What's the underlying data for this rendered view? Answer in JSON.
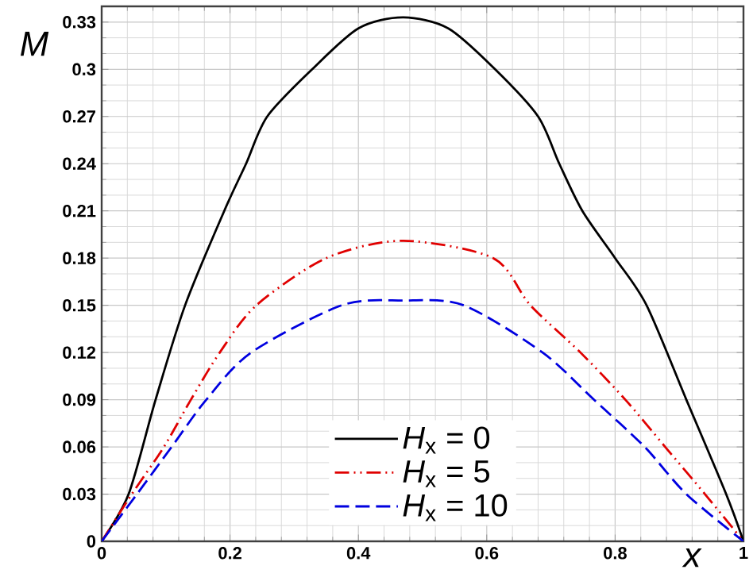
{
  "chart_data": {
    "type": "line",
    "xlabel": "x",
    "ylabel": "M",
    "xlim": [
      0,
      1
    ],
    "ylim": [
      0,
      0.34
    ],
    "xticks": [
      0,
      0.2,
      0.4,
      0.6,
      0.8,
      1
    ],
    "yticks": [
      0,
      0.03,
      0.06,
      0.09,
      0.12,
      0.15,
      0.18,
      0.21,
      0.24,
      0.27,
      0.3,
      0.33
    ],
    "grid": true,
    "legend": "bottom",
    "marker": "none",
    "series": [
      {
        "name": "*H*$_{x}$ = 0",
        "color": "#000000",
        "line_style": "solid",
        "x": [
          0,
          0.042,
          0.084,
          0.13,
          0.191,
          0.225,
          0.258,
          0.328,
          0.4,
          0.469,
          0.54,
          0.613,
          0.68,
          0.713,
          0.749,
          0.8,
          0.849,
          0.911,
          0.973,
          1
        ],
        "values": [
          0,
          0.03,
          0.09,
          0.15,
          0.21,
          0.24,
          0.27,
          0.3,
          0.326,
          0.333,
          0.326,
          0.3,
          0.27,
          0.24,
          0.21,
          0.18,
          0.15,
          0.09,
          0.03,
          0
        ]
      },
      {
        "name": "*H*$_{x}$ = 5",
        "color": "#e00000",
        "line_style": "dashdotdot",
        "x": [
          0,
          0.047,
          0.097,
          0.139,
          0.184,
          0.241,
          0.35,
          0.469,
          0.61,
          0.668,
          0.746,
          0.816,
          0.878,
          0.94,
          1
        ],
        "values": [
          0,
          0.03,
          0.06,
          0.09,
          0.12,
          0.15,
          0.18,
          0.191,
          0.18,
          0.15,
          0.12,
          0.09,
          0.06,
          0.03,
          0
        ]
      },
      {
        "name": "*H*$_{x}$ = 10",
        "color": "#0000e0",
        "line_style": "dashed",
        "x": [
          0,
          0.055,
          0.109,
          0.163,
          0.233,
          0.374,
          0.469,
          0.564,
          0.687,
          0.767,
          0.846,
          0.911,
          1
        ],
        "values": [
          0,
          0.03,
          0.06,
          0.09,
          0.12,
          0.15,
          0.153,
          0.15,
          0.12,
          0.09,
          0.06,
          0.03,
          0
        ]
      }
    ]
  }
}
